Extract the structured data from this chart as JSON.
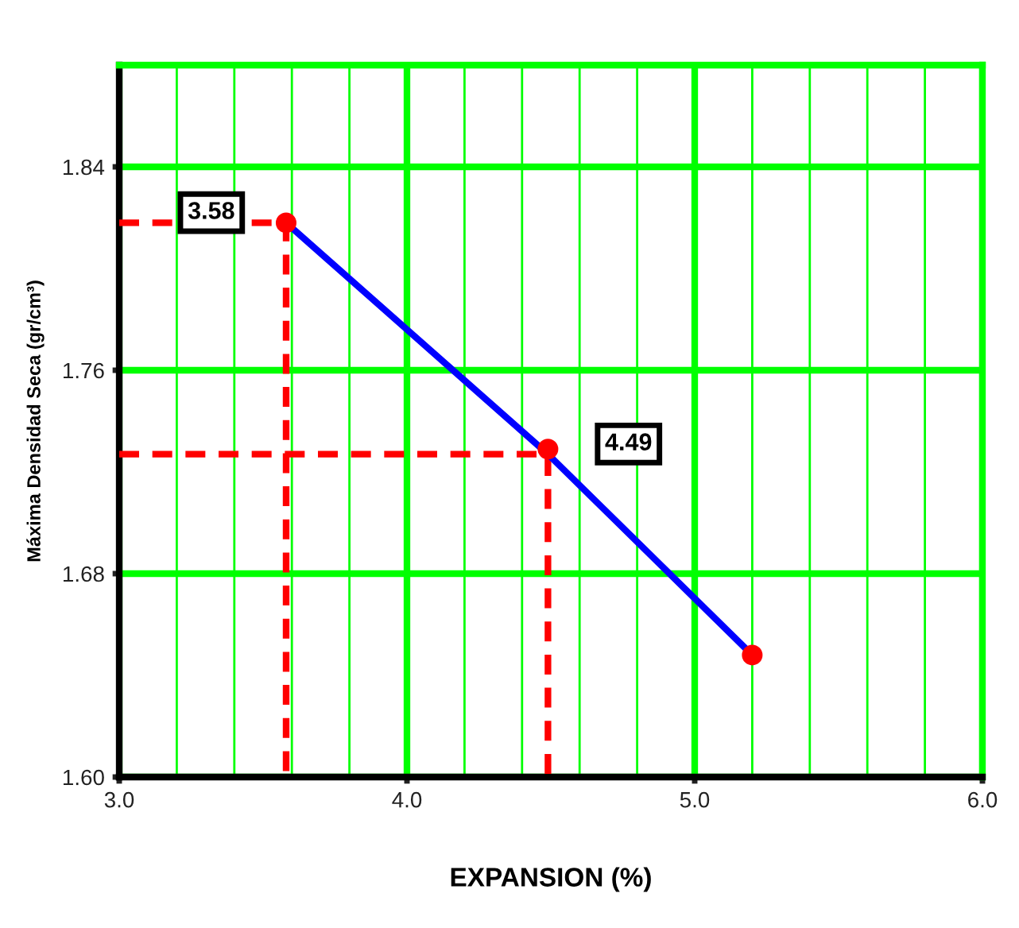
{
  "chart_data": {
    "type": "line",
    "xlabel": "EXPANSION (%)",
    "ylabel": "Máxima Densidad Seca (gr/cm³)",
    "xlim": [
      3.0,
      6.0
    ],
    "ylim": [
      1.6,
      1.88
    ],
    "xticks": [
      {
        "value": 3.0,
        "label": "3.0"
      },
      {
        "value": 3.2,
        "label": null
      },
      {
        "value": 3.4,
        "label": null
      },
      {
        "value": 3.6,
        "label": null
      },
      {
        "value": 3.8,
        "label": null
      },
      {
        "value": 4.0,
        "label": "4.0"
      },
      {
        "value": 4.2,
        "label": null
      },
      {
        "value": 4.4,
        "label": null
      },
      {
        "value": 4.6,
        "label": null
      },
      {
        "value": 4.8,
        "label": null
      },
      {
        "value": 5.0,
        "label": "5.0"
      },
      {
        "value": 5.2,
        "label": null
      },
      {
        "value": 5.4,
        "label": null
      },
      {
        "value": 5.6,
        "label": null
      },
      {
        "value": 5.8,
        "label": null
      },
      {
        "value": 6.0,
        "label": "6.0"
      }
    ],
    "yticks": [
      {
        "value": 1.6,
        "label": "1.60"
      },
      {
        "value": 1.68,
        "label": "1.68"
      },
      {
        "value": 1.76,
        "label": "1.76"
      },
      {
        "value": 1.84,
        "label": "1.84"
      }
    ],
    "grid": true,
    "series": [
      {
        "color": "#ff0000",
        "line_style": "dashed",
        "x": [
          3.0,
          3.58,
          3.58
        ],
        "values": [
          1.818,
          1.818,
          1.6
        ]
      },
      {
        "color": "#ff0000",
        "line_style": "dashed",
        "x": [
          3.0,
          4.49,
          4.49
        ],
        "values": [
          1.727,
          1.727,
          1.6
        ]
      },
      {
        "color": "#0000ff",
        "line_style": "solid",
        "x": [
          3.58,
          4.49,
          5.2
        ],
        "values": [
          1.818,
          1.727,
          1.648
        ]
      },
      {
        "type": "scatter",
        "color": "#ff0000",
        "marker": "circle",
        "x": [
          3.58,
          4.49,
          5.2
        ],
        "values": [
          1.818,
          1.729,
          1.648
        ]
      }
    ],
    "annotations": [
      {
        "text": "3.58",
        "x": 3.32,
        "y": 1.822
      },
      {
        "text": "4.49",
        "x": 4.77,
        "y": 1.731
      }
    ]
  }
}
